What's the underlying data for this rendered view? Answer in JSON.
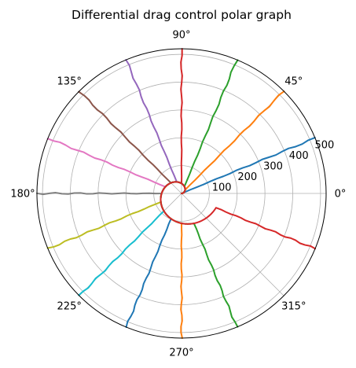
{
  "chart_data": {
    "type": "line",
    "projection": "polar",
    "title": "Differential drag control polar graph",
    "angle_unit": "deg",
    "angle_ticks": [
      "0°",
      "45°",
      "90°",
      "135°",
      "180°",
      "225°",
      "270°",
      "315°"
    ],
    "angle_tick_values": [
      0,
      45,
      90,
      135,
      180,
      225,
      270,
      315
    ],
    "rlim": [
      0,
      520
    ],
    "radial_ticks": [
      "100",
      "200",
      "300",
      "400",
      "500"
    ],
    "radial_tick_values": [
      100,
      200,
      300,
      400,
      500
    ],
    "radial_label_angle": 22.5,
    "grid": true,
    "legend": "none",
    "spiral": {
      "description_r_vs_theta": "r grows linearly with angle",
      "r_per_degree": 0.3978,
      "r_min_at_theta0": 0
    },
    "series": [
      {
        "color": "#1f77b4",
        "theta_end": 22.5,
        "r_end": 520
      },
      {
        "color": "#ff7f0e",
        "theta_end": 45,
        "r_end": 520
      },
      {
        "color": "#2ca02c",
        "theta_end": 67.5,
        "r_end": 520
      },
      {
        "color": "#d62728",
        "theta_end": 90,
        "r_end": 520
      },
      {
        "color": "#9467bd",
        "theta_end": 112.5,
        "r_end": 520
      },
      {
        "color": "#8c564b",
        "theta_end": 135,
        "r_end": 520
      },
      {
        "color": "#e377c2",
        "theta_end": 157.5,
        "r_end": 520
      },
      {
        "color": "#7f7f7f",
        "theta_end": 180,
        "r_end": 520
      },
      {
        "color": "#bcbd22",
        "theta_end": 202.5,
        "r_end": 520
      },
      {
        "color": "#17becf",
        "theta_end": 225,
        "r_end": 520
      },
      {
        "color": "#1f77b4",
        "theta_end": 247.5,
        "r_end": 520
      },
      {
        "color": "#ff7f0e",
        "theta_end": 270,
        "r_end": 520
      },
      {
        "color": "#2ca02c",
        "theta_end": 292.5,
        "r_end": 520
      },
      {
        "color": "#d62728",
        "theta_end": 337.5,
        "r_end": 520
      }
    ]
  }
}
